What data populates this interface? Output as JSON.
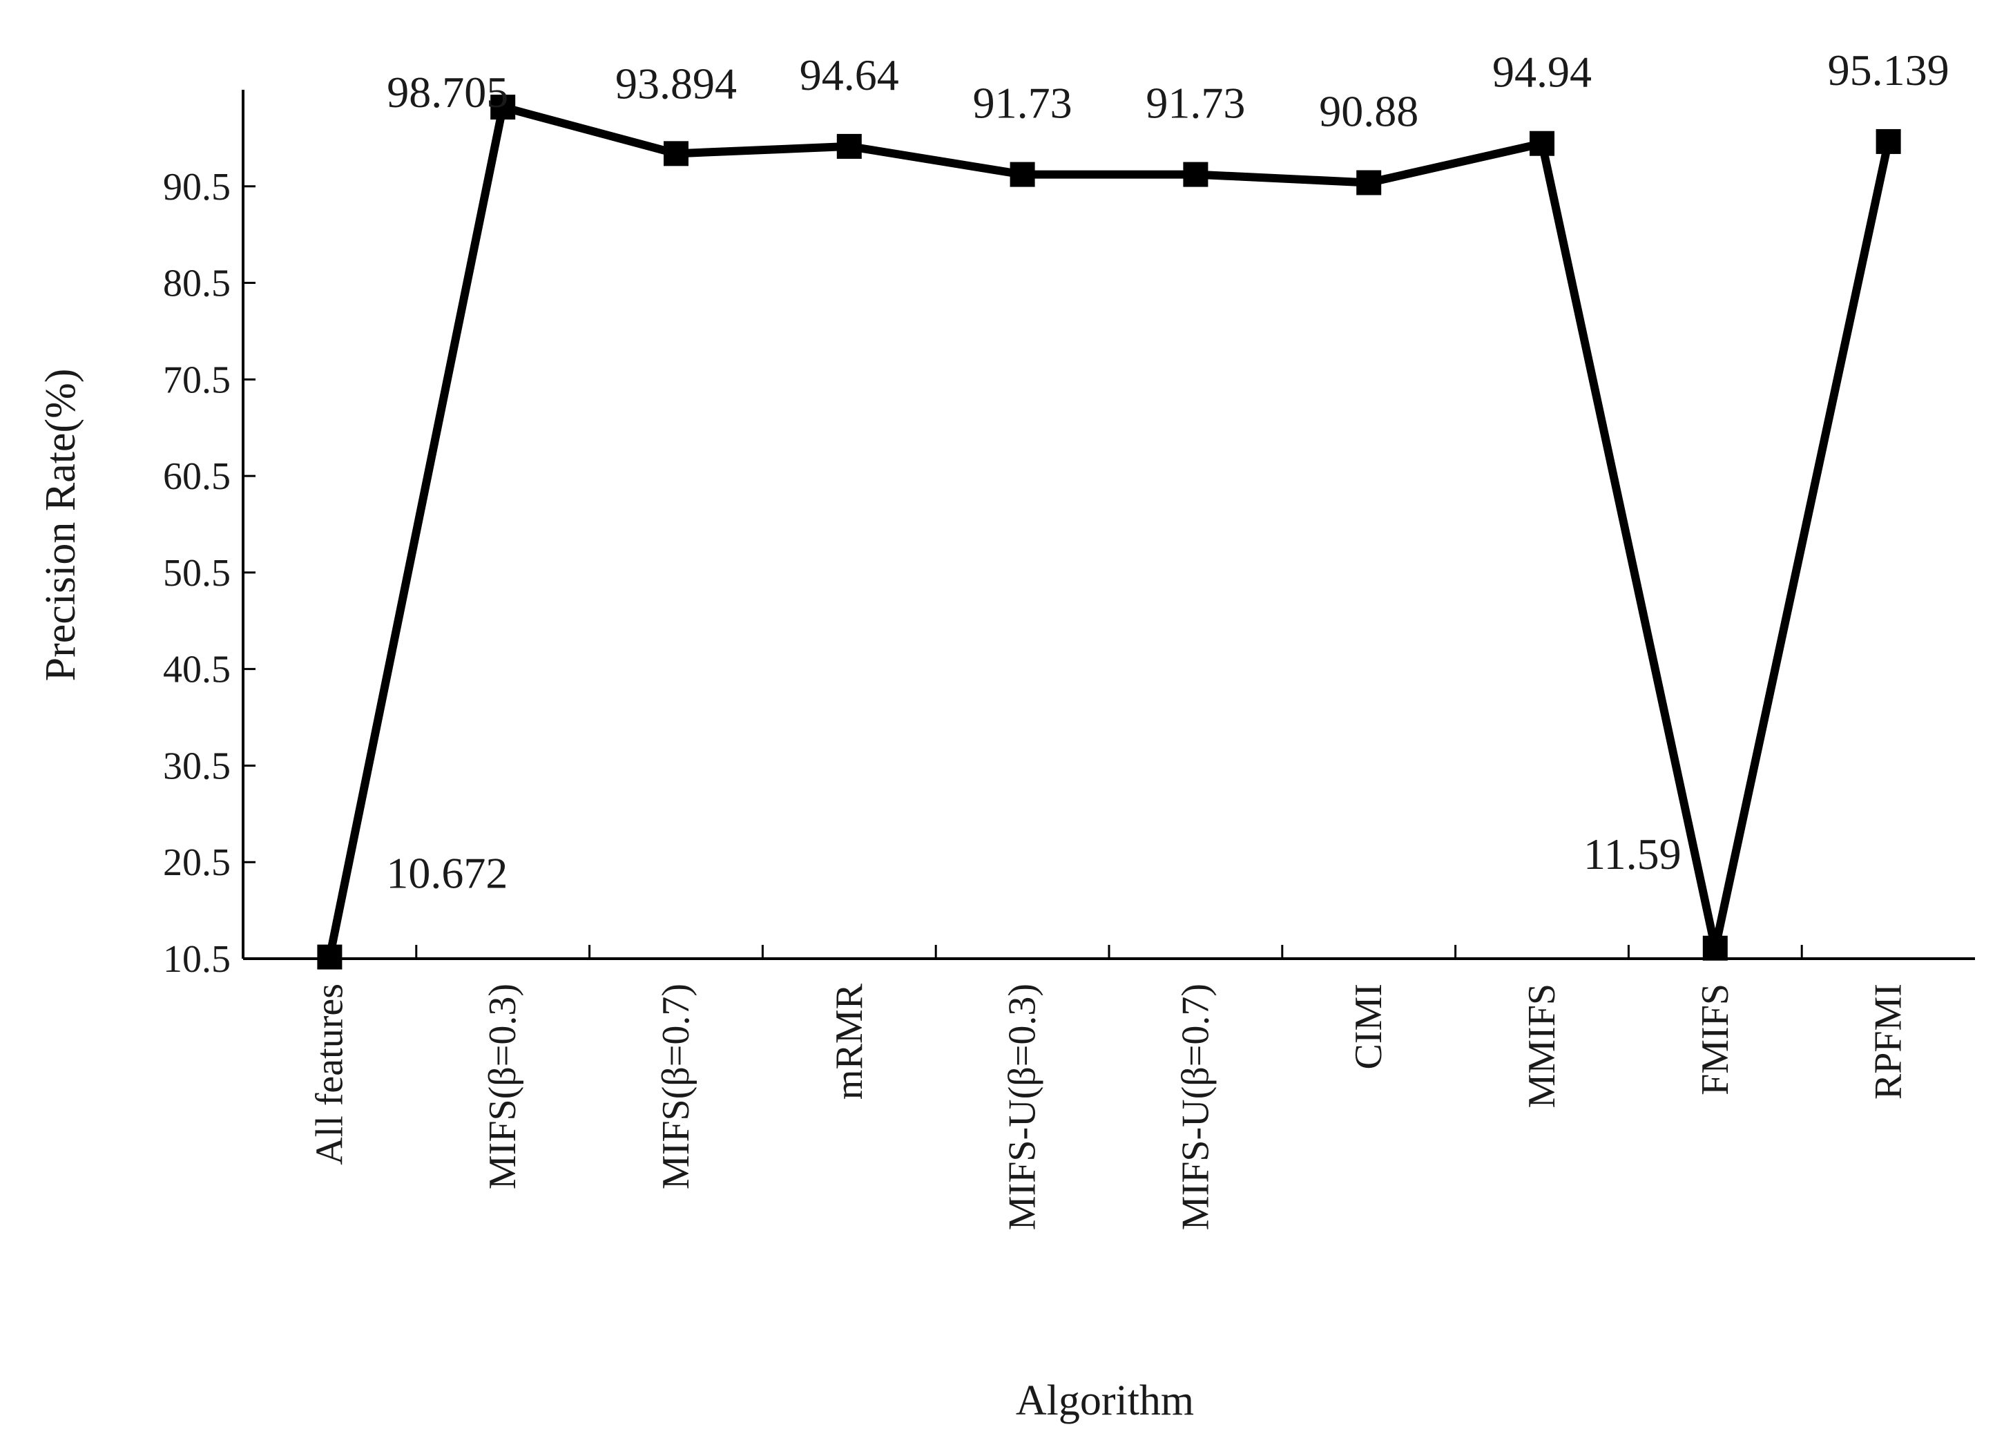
{
  "chart_data": {
    "type": "line",
    "xlabel": "Algorithm",
    "ylabel": "Precision Rate(%)",
    "ylim": [
      10.5,
      100.5
    ],
    "yticks": [
      "10.5",
      "20.5",
      "30.5",
      "40.5",
      "50.5",
      "60.5",
      "70.5",
      "80.5",
      "90.5"
    ],
    "categories": [
      "All features",
      "MIFS(β=0.3)",
      "MIFS(β=0.7)",
      "mRMR",
      "MIFS-U(β=0.3)",
      "MIFS-U(β=0.7)",
      "CIMI",
      "MMIFS",
      "FMIFS",
      "RPFMI"
    ],
    "series": [
      {
        "values": [
          10.672,
          98.705,
          93.894,
          94.64,
          91.73,
          91.73,
          90.88,
          94.94,
          11.59,
          95.139
        ],
        "labels": [
          "10.672",
          "98.705",
          "93.894",
          "94.64",
          "91.73",
          "91.73",
          "90.88",
          "94.94",
          "11.59",
          "95.139"
        ],
        "color": "#000000"
      }
    ],
    "grid": false,
    "legend": "none"
  }
}
